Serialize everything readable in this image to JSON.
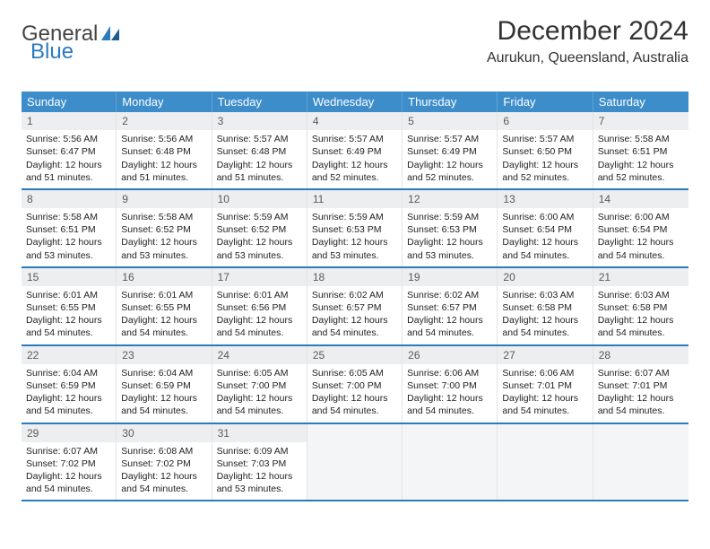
{
  "brand": {
    "word1": "General",
    "word2": "Blue"
  },
  "title": "December 2024",
  "location": "Aurukun, Queensland, Australia",
  "colors": {
    "header_bg": "#3d8dcb",
    "header_text": "#ffffff",
    "row_divider": "#2b7bbd",
    "daynum_bg": "#eceeef",
    "daynum_text": "#5a5a5a",
    "body_text": "#222222",
    "empty_bg": "#f4f5f6",
    "logo_gray": "#444444",
    "logo_blue": "#2b7bbd"
  },
  "dow": [
    "Sunday",
    "Monday",
    "Tuesday",
    "Wednesday",
    "Thursday",
    "Friday",
    "Saturday"
  ],
  "weeks": [
    [
      {
        "n": "1",
        "sr": "Sunrise: 5:56 AM",
        "ss": "Sunset: 6:47 PM",
        "dl": "Daylight: 12 hours and 51 minutes."
      },
      {
        "n": "2",
        "sr": "Sunrise: 5:56 AM",
        "ss": "Sunset: 6:48 PM",
        "dl": "Daylight: 12 hours and 51 minutes."
      },
      {
        "n": "3",
        "sr": "Sunrise: 5:57 AM",
        "ss": "Sunset: 6:48 PM",
        "dl": "Daylight: 12 hours and 51 minutes."
      },
      {
        "n": "4",
        "sr": "Sunrise: 5:57 AM",
        "ss": "Sunset: 6:49 PM",
        "dl": "Daylight: 12 hours and 52 minutes."
      },
      {
        "n": "5",
        "sr": "Sunrise: 5:57 AM",
        "ss": "Sunset: 6:49 PM",
        "dl": "Daylight: 12 hours and 52 minutes."
      },
      {
        "n": "6",
        "sr": "Sunrise: 5:57 AM",
        "ss": "Sunset: 6:50 PM",
        "dl": "Daylight: 12 hours and 52 minutes."
      },
      {
        "n": "7",
        "sr": "Sunrise: 5:58 AM",
        "ss": "Sunset: 6:51 PM",
        "dl": "Daylight: 12 hours and 52 minutes."
      }
    ],
    [
      {
        "n": "8",
        "sr": "Sunrise: 5:58 AM",
        "ss": "Sunset: 6:51 PM",
        "dl": "Daylight: 12 hours and 53 minutes."
      },
      {
        "n": "9",
        "sr": "Sunrise: 5:58 AM",
        "ss": "Sunset: 6:52 PM",
        "dl": "Daylight: 12 hours and 53 minutes."
      },
      {
        "n": "10",
        "sr": "Sunrise: 5:59 AM",
        "ss": "Sunset: 6:52 PM",
        "dl": "Daylight: 12 hours and 53 minutes."
      },
      {
        "n": "11",
        "sr": "Sunrise: 5:59 AM",
        "ss": "Sunset: 6:53 PM",
        "dl": "Daylight: 12 hours and 53 minutes."
      },
      {
        "n": "12",
        "sr": "Sunrise: 5:59 AM",
        "ss": "Sunset: 6:53 PM",
        "dl": "Daylight: 12 hours and 53 minutes."
      },
      {
        "n": "13",
        "sr": "Sunrise: 6:00 AM",
        "ss": "Sunset: 6:54 PM",
        "dl": "Daylight: 12 hours and 54 minutes."
      },
      {
        "n": "14",
        "sr": "Sunrise: 6:00 AM",
        "ss": "Sunset: 6:54 PM",
        "dl": "Daylight: 12 hours and 54 minutes."
      }
    ],
    [
      {
        "n": "15",
        "sr": "Sunrise: 6:01 AM",
        "ss": "Sunset: 6:55 PM",
        "dl": "Daylight: 12 hours and 54 minutes."
      },
      {
        "n": "16",
        "sr": "Sunrise: 6:01 AM",
        "ss": "Sunset: 6:55 PM",
        "dl": "Daylight: 12 hours and 54 minutes."
      },
      {
        "n": "17",
        "sr": "Sunrise: 6:01 AM",
        "ss": "Sunset: 6:56 PM",
        "dl": "Daylight: 12 hours and 54 minutes."
      },
      {
        "n": "18",
        "sr": "Sunrise: 6:02 AM",
        "ss": "Sunset: 6:57 PM",
        "dl": "Daylight: 12 hours and 54 minutes."
      },
      {
        "n": "19",
        "sr": "Sunrise: 6:02 AM",
        "ss": "Sunset: 6:57 PM",
        "dl": "Daylight: 12 hours and 54 minutes."
      },
      {
        "n": "20",
        "sr": "Sunrise: 6:03 AM",
        "ss": "Sunset: 6:58 PM",
        "dl": "Daylight: 12 hours and 54 minutes."
      },
      {
        "n": "21",
        "sr": "Sunrise: 6:03 AM",
        "ss": "Sunset: 6:58 PM",
        "dl": "Daylight: 12 hours and 54 minutes."
      }
    ],
    [
      {
        "n": "22",
        "sr": "Sunrise: 6:04 AM",
        "ss": "Sunset: 6:59 PM",
        "dl": "Daylight: 12 hours and 54 minutes."
      },
      {
        "n": "23",
        "sr": "Sunrise: 6:04 AM",
        "ss": "Sunset: 6:59 PM",
        "dl": "Daylight: 12 hours and 54 minutes."
      },
      {
        "n": "24",
        "sr": "Sunrise: 6:05 AM",
        "ss": "Sunset: 7:00 PM",
        "dl": "Daylight: 12 hours and 54 minutes."
      },
      {
        "n": "25",
        "sr": "Sunrise: 6:05 AM",
        "ss": "Sunset: 7:00 PM",
        "dl": "Daylight: 12 hours and 54 minutes."
      },
      {
        "n": "26",
        "sr": "Sunrise: 6:06 AM",
        "ss": "Sunset: 7:00 PM",
        "dl": "Daylight: 12 hours and 54 minutes."
      },
      {
        "n": "27",
        "sr": "Sunrise: 6:06 AM",
        "ss": "Sunset: 7:01 PM",
        "dl": "Daylight: 12 hours and 54 minutes."
      },
      {
        "n": "28",
        "sr": "Sunrise: 6:07 AM",
        "ss": "Sunset: 7:01 PM",
        "dl": "Daylight: 12 hours and 54 minutes."
      }
    ],
    [
      {
        "n": "29",
        "sr": "Sunrise: 6:07 AM",
        "ss": "Sunset: 7:02 PM",
        "dl": "Daylight: 12 hours and 54 minutes."
      },
      {
        "n": "30",
        "sr": "Sunrise: 6:08 AM",
        "ss": "Sunset: 7:02 PM",
        "dl": "Daylight: 12 hours and 54 minutes."
      },
      {
        "n": "31",
        "sr": "Sunrise: 6:09 AM",
        "ss": "Sunset: 7:03 PM",
        "dl": "Daylight: 12 hours and 53 minutes."
      },
      null,
      null,
      null,
      null
    ]
  ]
}
